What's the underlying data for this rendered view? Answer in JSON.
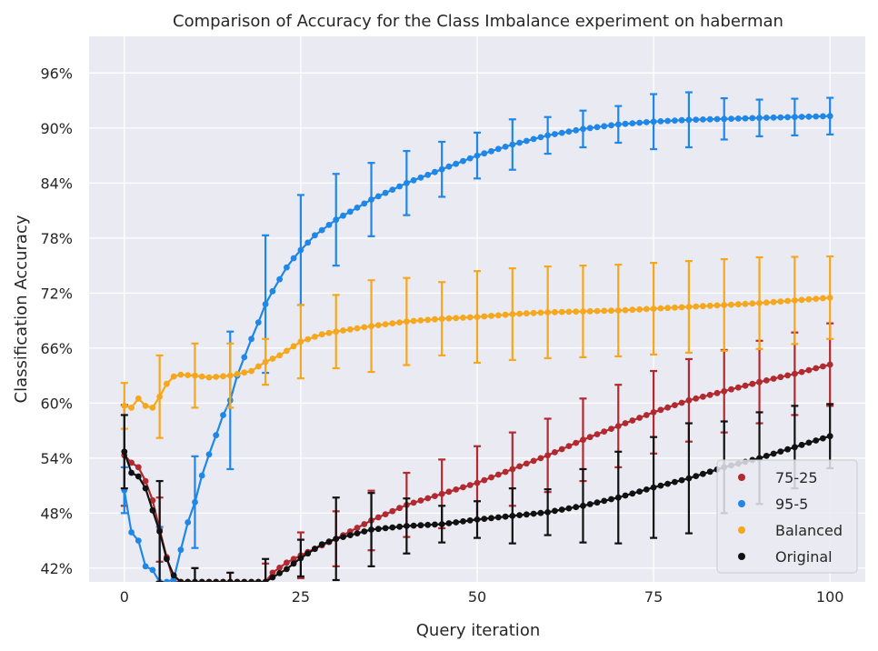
{
  "chart_data": {
    "type": "line",
    "title": "Comparison of Accuracy for the Class Imbalance experiment on haberman",
    "xlabel": "Query iteration",
    "ylabel": "Classification Accuracy",
    "xlim": [
      -5,
      105
    ],
    "ylim": [
      0.405,
      0.1
    ],
    "ylim_note": "",
    "xticks": [
      0,
      25,
      50,
      75,
      100
    ],
    "yticks": [
      0.42,
      0.48,
      0.54,
      0.6,
      0.66,
      0.72,
      0.78,
      0.84,
      0.9,
      0.96
    ],
    "ytick_labels": [
      "42%",
      "48%",
      "54%",
      "60%",
      "66%",
      "72%",
      "78%",
      "84%",
      "90%",
      "96%"
    ],
    "grid": true,
    "legend_placement": "bottom-right",
    "series": [
      {
        "name": "75-25",
        "color": "#b22a2f",
        "anchors": [
          [
            0,
            0.543
          ],
          [
            1,
            0.535
          ],
          [
            2,
            0.53
          ],
          [
            3,
            0.515
          ],
          [
            4,
            0.494
          ],
          [
            5,
            0.462
          ],
          [
            6,
            0.432
          ],
          [
            7,
            0.405
          ],
          [
            19,
            0.405
          ],
          [
            20,
            0.405
          ],
          [
            21,
            0.415
          ],
          [
            23,
            0.426
          ],
          [
            25,
            0.434
          ],
          [
            30,
            0.452
          ],
          [
            35,
            0.472
          ],
          [
            40,
            0.489
          ],
          [
            45,
            0.501
          ],
          [
            50,
            0.513
          ],
          [
            55,
            0.528
          ],
          [
            60,
            0.543
          ],
          [
            65,
            0.56
          ],
          [
            70,
            0.575
          ],
          [
            75,
            0.59
          ],
          [
            80,
            0.603
          ],
          [
            85,
            0.613
          ],
          [
            90,
            0.623
          ],
          [
            95,
            0.632
          ],
          [
            100,
            0.642
          ]
        ],
        "error": [
          [
            0,
            0.11
          ],
          [
            5,
            0.07
          ],
          [
            10,
            0.03
          ],
          [
            15,
            0.02
          ],
          [
            20,
            0.04
          ],
          [
            25,
            0.05
          ],
          [
            30,
            0.06
          ],
          [
            35,
            0.065
          ],
          [
            40,
            0.07
          ],
          [
            45,
            0.075
          ],
          [
            50,
            0.08
          ],
          [
            55,
            0.08
          ],
          [
            60,
            0.08
          ],
          [
            65,
            0.09
          ],
          [
            70,
            0.09
          ],
          [
            75,
            0.09
          ],
          [
            80,
            0.09
          ],
          [
            85,
            0.09
          ],
          [
            90,
            0.09
          ],
          [
            95,
            0.09
          ],
          [
            100,
            0.09
          ]
        ]
      },
      {
        "name": "95-5",
        "color": "#1f87e8",
        "anchors": [
          [
            0,
            0.505
          ],
          [
            1,
            0.459
          ],
          [
            2,
            0.45
          ],
          [
            3,
            0.422
          ],
          [
            4,
            0.418
          ],
          [
            5,
            0.405
          ],
          [
            6,
            0.405
          ],
          [
            7,
            0.408
          ],
          [
            8,
            0.44
          ],
          [
            9,
            0.47
          ],
          [
            10,
            0.492
          ],
          [
            11,
            0.521
          ],
          [
            12,
            0.544
          ],
          [
            13,
            0.565
          ],
          [
            14,
            0.587
          ],
          [
            15,
            0.603
          ],
          [
            16,
            0.63
          ],
          [
            17,
            0.65
          ],
          [
            18,
            0.67
          ],
          [
            19,
            0.688
          ],
          [
            20,
            0.708
          ],
          [
            21,
            0.722
          ],
          [
            22,
            0.735
          ],
          [
            23,
            0.748
          ],
          [
            24,
            0.758
          ],
          [
            25,
            0.767
          ],
          [
            27,
            0.783
          ],
          [
            30,
            0.8
          ],
          [
            35,
            0.822
          ],
          [
            40,
            0.84
          ],
          [
            45,
            0.855
          ],
          [
            50,
            0.87
          ],
          [
            55,
            0.882
          ],
          [
            60,
            0.892
          ],
          [
            65,
            0.899
          ],
          [
            70,
            0.904
          ],
          [
            75,
            0.907
          ],
          [
            80,
            0.909
          ],
          [
            85,
            0.91
          ],
          [
            90,
            0.911
          ],
          [
            95,
            0.912
          ],
          [
            100,
            0.913
          ]
        ],
        "error": [
          [
            0,
            0.05
          ],
          [
            5,
            0.12
          ],
          [
            10,
            0.1
          ],
          [
            15,
            0.15
          ],
          [
            20,
            0.15
          ],
          [
            25,
            0.12
          ],
          [
            30,
            0.1
          ],
          [
            35,
            0.08
          ],
          [
            40,
            0.07
          ],
          [
            45,
            0.06
          ],
          [
            50,
            0.05
          ],
          [
            55,
            0.055
          ],
          [
            60,
            0.04
          ],
          [
            65,
            0.04
          ],
          [
            70,
            0.04
          ],
          [
            75,
            0.06
          ],
          [
            80,
            0.06
          ],
          [
            85,
            0.045
          ],
          [
            90,
            0.04
          ],
          [
            95,
            0.04
          ],
          [
            100,
            0.04
          ]
        ]
      },
      {
        "name": "Balanced",
        "color": "#f5a71d",
        "anchors": [
          [
            0,
            0.597
          ],
          [
            1,
            0.595
          ],
          [
            2,
            0.605
          ],
          [
            3,
            0.597
          ],
          [
            4,
            0.595
          ],
          [
            5,
            0.607
          ],
          [
            6,
            0.621
          ],
          [
            7,
            0.629
          ],
          [
            8,
            0.631
          ],
          [
            10,
            0.63
          ],
          [
            12,
            0.628
          ],
          [
            15,
            0.63
          ],
          [
            18,
            0.635
          ],
          [
            20,
            0.645
          ],
          [
            22,
            0.652
          ],
          [
            25,
            0.667
          ],
          [
            28,
            0.675
          ],
          [
            30,
            0.678
          ],
          [
            35,
            0.684
          ],
          [
            40,
            0.689
          ],
          [
            45,
            0.692
          ],
          [
            50,
            0.694
          ],
          [
            55,
            0.697
          ],
          [
            60,
            0.699
          ],
          [
            65,
            0.7
          ],
          [
            70,
            0.701
          ],
          [
            75,
            0.703
          ],
          [
            80,
            0.705
          ],
          [
            85,
            0.707
          ],
          [
            90,
            0.709
          ],
          [
            95,
            0.712
          ],
          [
            100,
            0.715
          ]
        ],
        "error": [
          [
            0,
            0.05
          ],
          [
            5,
            0.09
          ],
          [
            10,
            0.07
          ],
          [
            15,
            0.07
          ],
          [
            20,
            0.05
          ],
          [
            25,
            0.08
          ],
          [
            30,
            0.08
          ],
          [
            35,
            0.1
          ],
          [
            40,
            0.095
          ],
          [
            45,
            0.08
          ],
          [
            50,
            0.1
          ],
          [
            55,
            0.1
          ],
          [
            60,
            0.1
          ],
          [
            65,
            0.1
          ],
          [
            70,
            0.1
          ],
          [
            75,
            0.1
          ],
          [
            80,
            0.1
          ],
          [
            85,
            0.1
          ],
          [
            90,
            0.1
          ],
          [
            95,
            0.095
          ],
          [
            100,
            0.09
          ]
        ]
      },
      {
        "name": "Original",
        "color": "#111111",
        "anchors": [
          [
            0,
            0.547
          ],
          [
            1,
            0.524
          ],
          [
            2,
            0.52
          ],
          [
            3,
            0.507
          ],
          [
            4,
            0.483
          ],
          [
            5,
            0.46
          ],
          [
            6,
            0.43
          ],
          [
            7,
            0.412
          ],
          [
            8,
            0.405
          ],
          [
            19,
            0.405
          ],
          [
            20,
            0.405
          ],
          [
            21,
            0.41
          ],
          [
            23,
            0.419
          ],
          [
            25,
            0.431
          ],
          [
            28,
            0.446
          ],
          [
            30,
            0.452
          ],
          [
            35,
            0.462
          ],
          [
            40,
            0.466
          ],
          [
            45,
            0.468
          ],
          [
            50,
            0.473
          ],
          [
            55,
            0.477
          ],
          [
            60,
            0.481
          ],
          [
            65,
            0.488
          ],
          [
            70,
            0.497
          ],
          [
            75,
            0.508
          ],
          [
            80,
            0.518
          ],
          [
            85,
            0.53
          ],
          [
            90,
            0.54
          ],
          [
            95,
            0.552
          ],
          [
            100,
            0.564
          ]
        ],
        "error": [
          [
            0,
            0.08
          ],
          [
            5,
            0.11
          ],
          [
            10,
            0.03
          ],
          [
            15,
            0.02
          ],
          [
            20,
            0.05
          ],
          [
            25,
            0.04
          ],
          [
            30,
            0.09
          ],
          [
            35,
            0.08
          ],
          [
            40,
            0.06
          ],
          [
            45,
            0.04
          ],
          [
            50,
            0.04
          ],
          [
            55,
            0.06
          ],
          [
            60,
            0.05
          ],
          [
            65,
            0.08
          ],
          [
            70,
            0.1
          ],
          [
            75,
            0.11
          ],
          [
            80,
            0.12
          ],
          [
            85,
            0.1
          ],
          [
            90,
            0.1
          ],
          [
            95,
            0.09
          ],
          [
            100,
            0.07
          ]
        ]
      }
    ]
  }
}
